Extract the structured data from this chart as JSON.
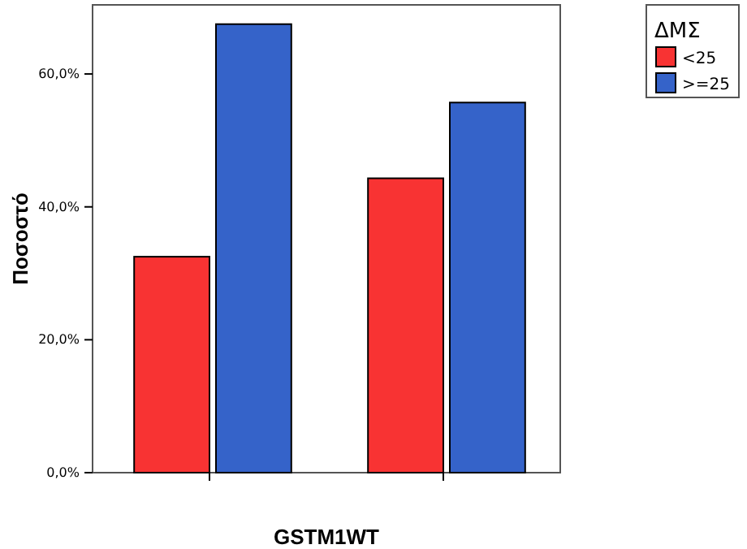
{
  "chart_data": {
    "type": "bar",
    "xlabel": "GSTM1WT",
    "ylabel": "Ποσοστό",
    "legend_title": "ΔΜΣ",
    "legend": "right",
    "categories": [
      null,
      null
    ],
    "series": [
      {
        "name": "<25",
        "color": "#f83333",
        "values": [
          32.5,
          44.3
        ]
      },
      {
        "name": ">=25",
        "color": "#3563c9",
        "values": [
          67.5,
          55.7
        ]
      }
    ],
    "ylim": [
      0,
      70.4
    ],
    "yticks": [
      {
        "value": 0,
        "label": "0,0%"
      },
      {
        "value": 20,
        "label": "20,0%"
      },
      {
        "value": 40,
        "label": "40,0%"
      },
      {
        "value": 60,
        "label": "60,0%"
      }
    ],
    "grid": false
  }
}
